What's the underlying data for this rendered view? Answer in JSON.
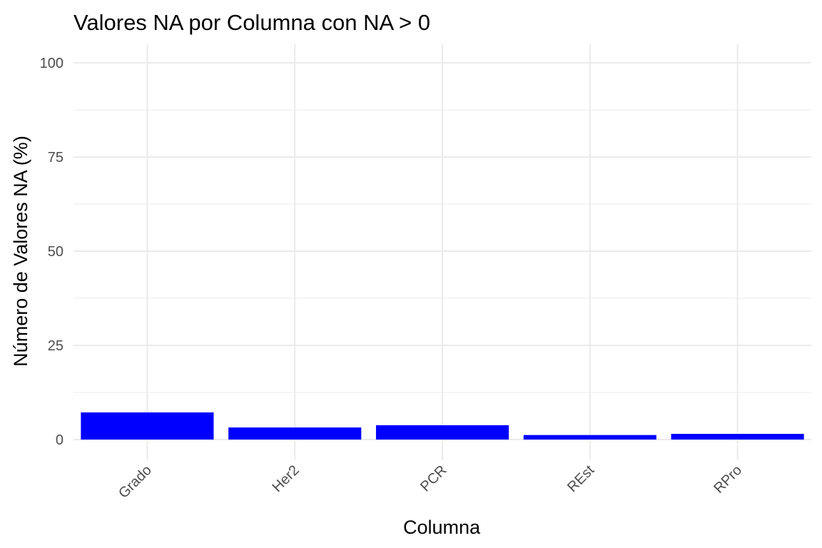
{
  "chart_data": {
    "type": "bar",
    "title": "Valores NA por Columna con NA > 0",
    "xlabel": "Columna",
    "ylabel": "Número de Valores NA (%)",
    "categories": [
      "Grado",
      "Her2",
      "PCR",
      "REst",
      "RPro"
    ],
    "values": [
      7.2,
      3.2,
      3.8,
      1.2,
      1.5
    ],
    "ylim": [
      0,
      100
    ],
    "yticks": [
      0,
      25,
      50,
      75,
      100
    ],
    "ytick_labels": [
      "0",
      "25",
      "50",
      "75",
      "100"
    ],
    "xtick_rotation_deg": 45,
    "grid": true,
    "legend": "none",
    "bar_color": "#0000ff",
    "grid_color": "#ebebeb",
    "tick_label_color": "#4d4d4d"
  }
}
